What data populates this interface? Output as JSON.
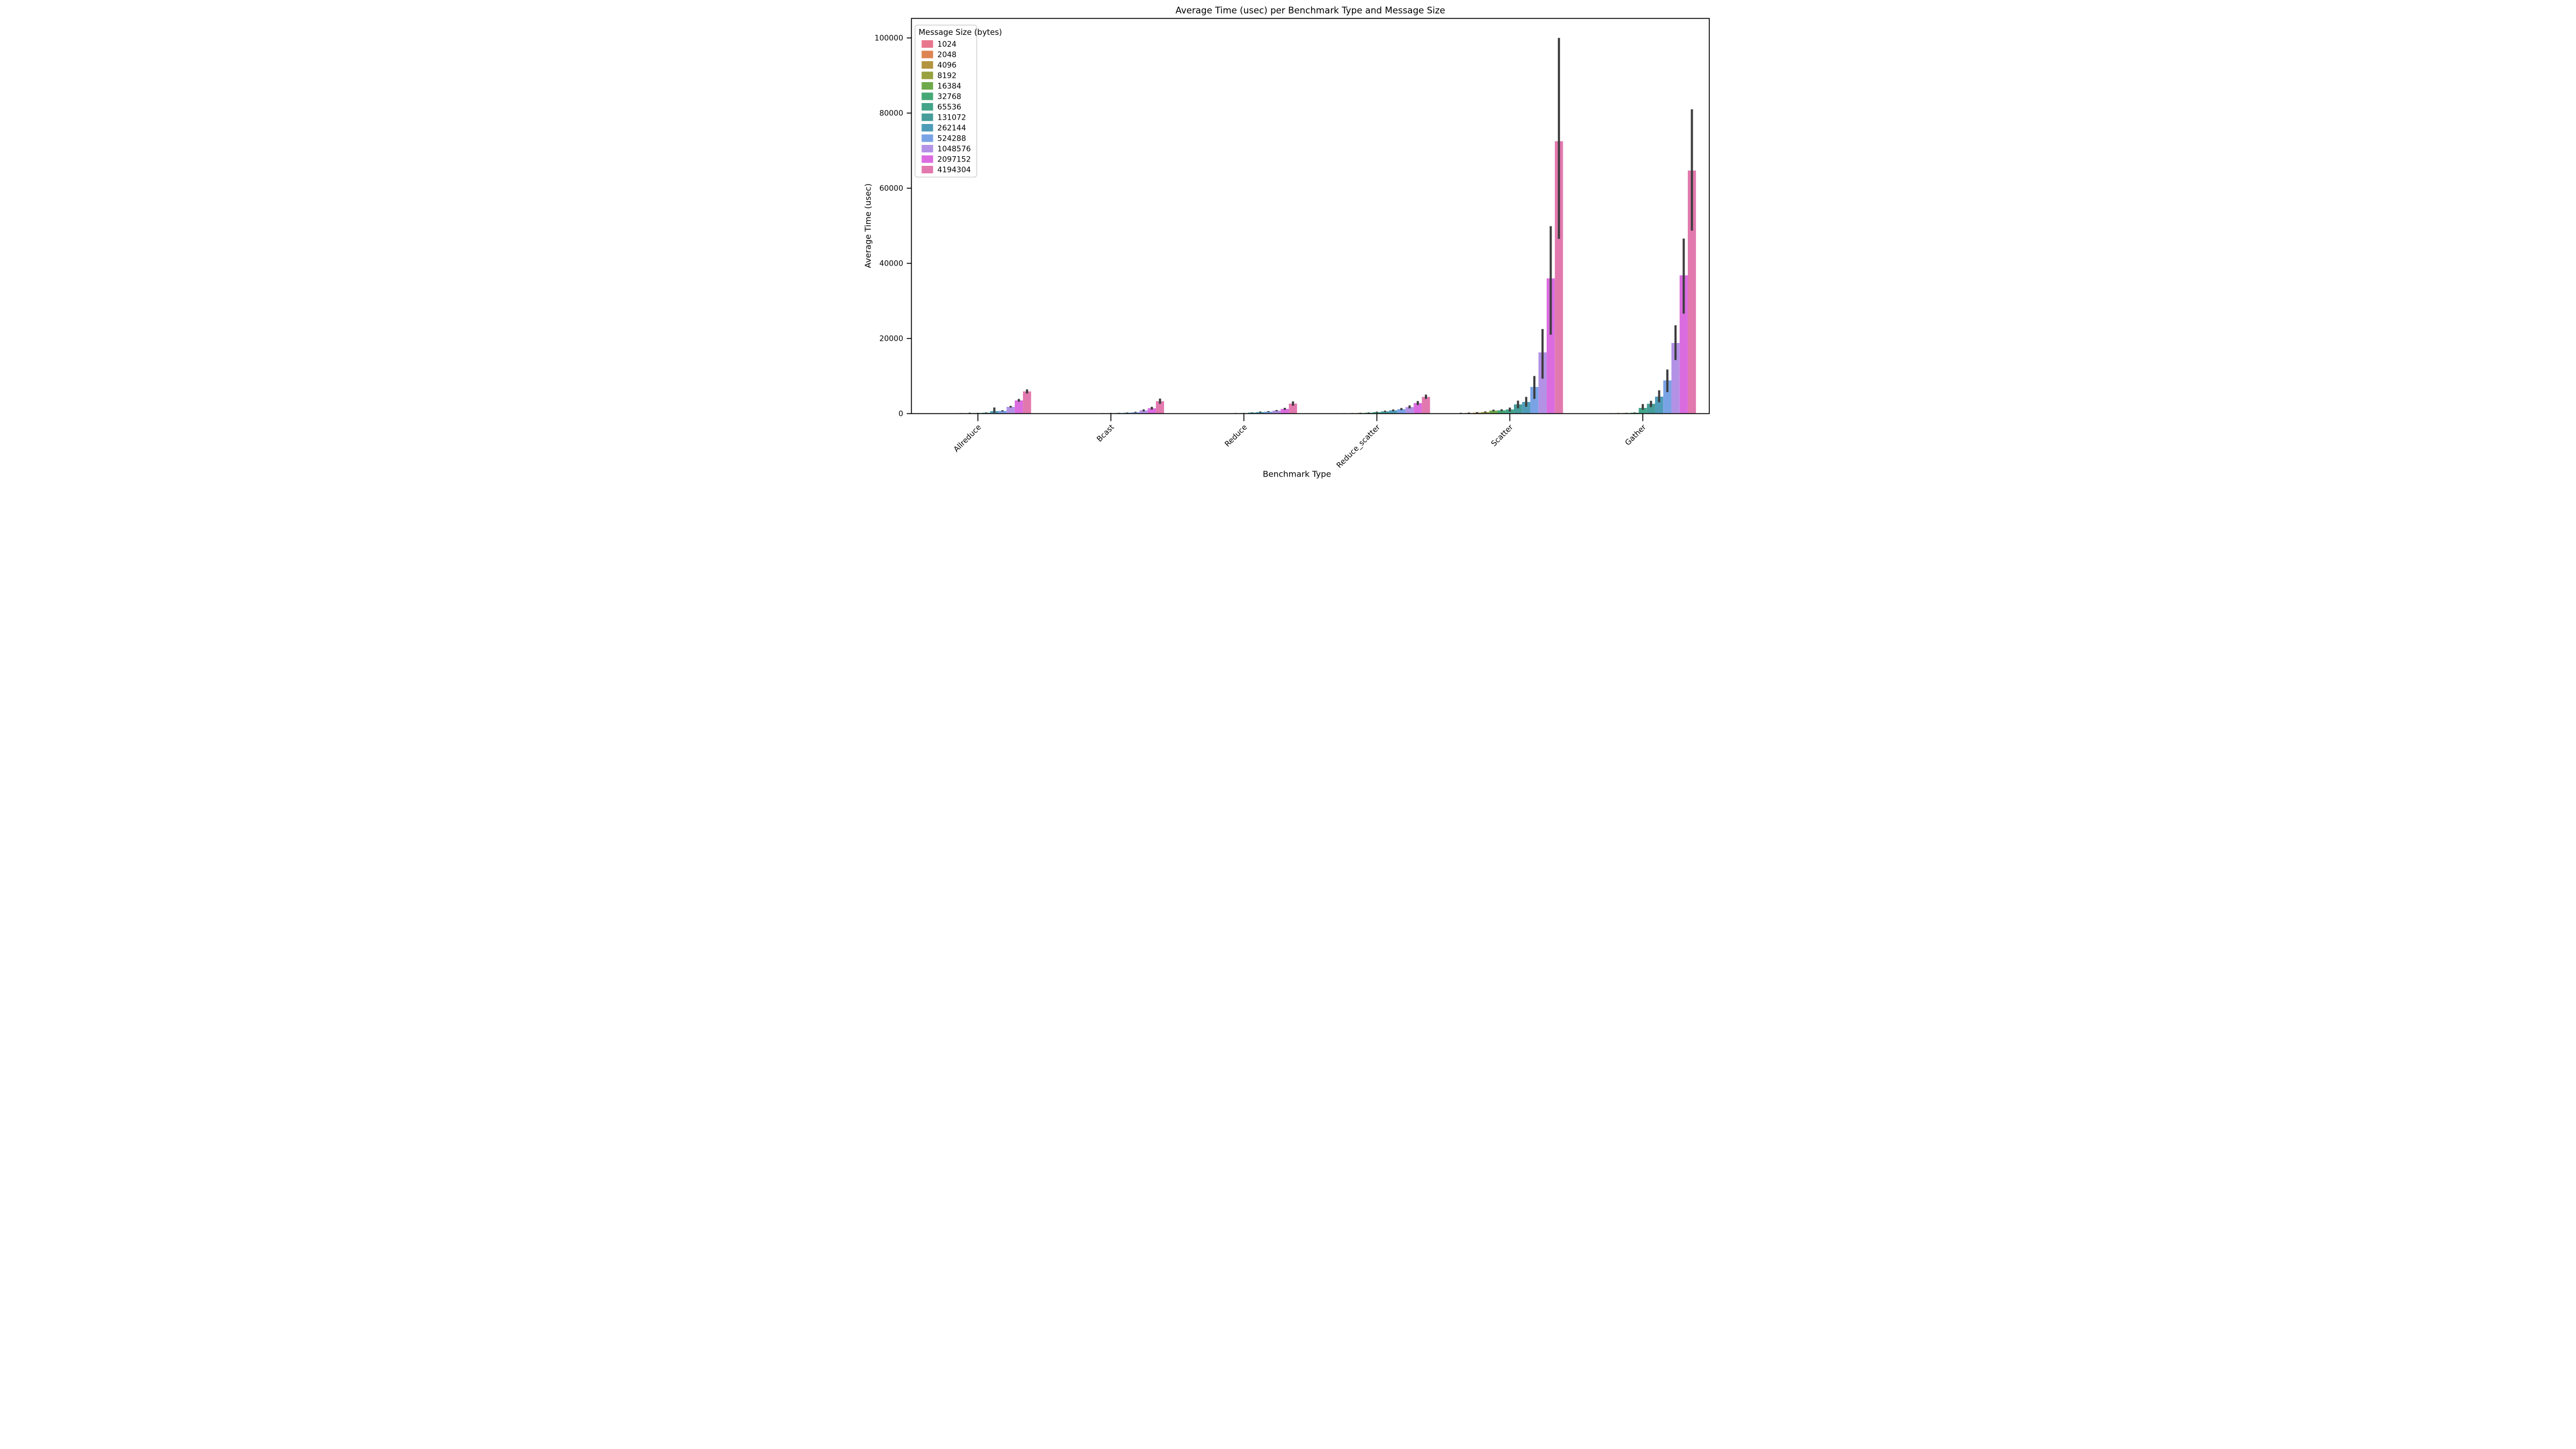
{
  "title": "Average Time (usec) per Benchmark Type and Message Size",
  "axes": {
    "xlabel": "Benchmark Type",
    "ylabel": "Average Time (usec)"
  },
  "legend": {
    "title": "Message Size (bytes)"
  },
  "chart_data": {
    "type": "bar",
    "title": "Average Time (usec) per Benchmark Type and Message Size",
    "xlabel": "Benchmark Type",
    "ylabel": "Average Time (usec)",
    "categories": [
      "Allreduce",
      "Bcast",
      "Reduce",
      "Reduce_scatter",
      "Scatter",
      "Gather"
    ],
    "ylim": [
      0,
      105000
    ],
    "yticks": [
      0,
      20000,
      40000,
      60000,
      80000,
      100000
    ],
    "grid": false,
    "legend_title": "Message Size (bytes)",
    "legend_position": "upper left",
    "error_bar_color": "#3d3d3d",
    "axis_color": "#000000",
    "series": [
      {
        "name": "1024",
        "color": "#e8768d",
        "values": [
          30,
          20,
          25,
          55,
          110,
          40
        ],
        "ci_low": [
          22,
          15,
          18,
          35,
          60,
          28
        ],
        "ci_high": [
          40,
          28,
          35,
          90,
          200,
          55
        ]
      },
      {
        "name": "2048",
        "color": "#dd8452",
        "values": [
          40,
          25,
          30,
          75,
          160,
          60
        ],
        "ci_low": [
          30,
          18,
          22,
          50,
          90,
          42
        ],
        "ci_high": [
          52,
          35,
          42,
          105,
          280,
          80
        ]
      },
      {
        "name": "4096",
        "color": "#b39440",
        "values": [
          55,
          35,
          45,
          85,
          250,
          90
        ],
        "ci_low": [
          42,
          26,
          34,
          62,
          140,
          65
        ],
        "ci_high": [
          70,
          46,
          58,
          112,
          390,
          118
        ]
      },
      {
        "name": "8192",
        "color": "#97a13e",
        "values": [
          75,
          45,
          60,
          105,
          400,
          120
        ],
        "ci_low": [
          58,
          34,
          46,
          80,
          250,
          88
        ],
        "ci_high": [
          95,
          58,
          76,
          140,
          580,
          155
        ]
      },
      {
        "name": "16384",
        "color": "#6ea94b",
        "values": [
          110,
          60,
          80,
          160,
          795,
          160
        ],
        "ci_low": [
          88,
          45,
          62,
          120,
          600,
          120
        ],
        "ci_high": [
          135,
          78,
          100,
          220,
          1050,
          205
        ]
      },
      {
        "name": "32768",
        "color": "#45a876",
        "values": [
          130,
          90,
          100,
          230,
          870,
          240
        ],
        "ci_low": [
          100,
          68,
          70,
          170,
          650,
          180
        ],
        "ci_high": [
          245,
          118,
          150,
          310,
          1150,
          310
        ]
      },
      {
        "name": "65536",
        "color": "#43a489",
        "values": [
          160,
          110,
          140,
          380,
          1100,
          1510
        ],
        "ci_low": [
          128,
          82,
          110,
          270,
          555,
          1030
        ],
        "ci_high": [
          200,
          160,
          175,
          530,
          1590,
          2540
        ]
      },
      {
        "name": "131072",
        "color": "#469d99",
        "values": [
          240,
          150,
          270,
          590,
          2450,
          2620
        ],
        "ci_low": [
          185,
          112,
          215,
          440,
          1430,
          1745
        ],
        "ci_high": [
          320,
          205,
          330,
          780,
          3445,
          3410
        ]
      },
      {
        "name": "262144",
        "color": "#4f9cb8",
        "values": [
          650,
          220,
          400,
          860,
          3100,
          4520
        ],
        "ci_low": [
          240,
          162,
          290,
          650,
          1825,
          3015
        ],
        "ci_high": [
          1620,
          300,
          560,
          1100,
          4445,
          6190
        ]
      },
      {
        "name": "524288",
        "color": "#7aa3e6",
        "values": [
          720,
          350,
          510,
          1190,
          7100,
          8840
        ],
        "ci_low": [
          560,
          255,
          395,
          930,
          3900,
          5715
        ],
        "ci_high": [
          900,
          480,
          650,
          1480,
          10000,
          11745
        ]
      },
      {
        "name": "1048576",
        "color": "#b392e6",
        "values": [
          1800,
          860,
          780,
          1750,
          16300,
          18800
        ],
        "ci_low": [
          1600,
          600,
          640,
          1380,
          9300,
          14250
        ],
        "ci_high": [
          2050,
          1120,
          950,
          2180,
          22500,
          23500
        ]
      },
      {
        "name": "2097152",
        "color": "#db6ce0",
        "values": [
          3500,
          1430,
          1250,
          2800,
          36000,
          36800
        ],
        "ci_low": [
          3150,
          1080,
          1000,
          2280,
          21000,
          26600
        ],
        "ci_high": [
          3900,
          1800,
          1530,
          3350,
          49900,
          46600
        ]
      },
      {
        "name": "4194304",
        "color": "#e279ae",
        "values": [
          5900,
          3300,
          2650,
          4450,
          72500,
          64700
        ],
        "ci_low": [
          5350,
          2600,
          2100,
          3900,
          46500,
          48700
        ],
        "ci_high": [
          6450,
          4000,
          3250,
          5050,
          100000,
          81000
        ]
      }
    ]
  }
}
